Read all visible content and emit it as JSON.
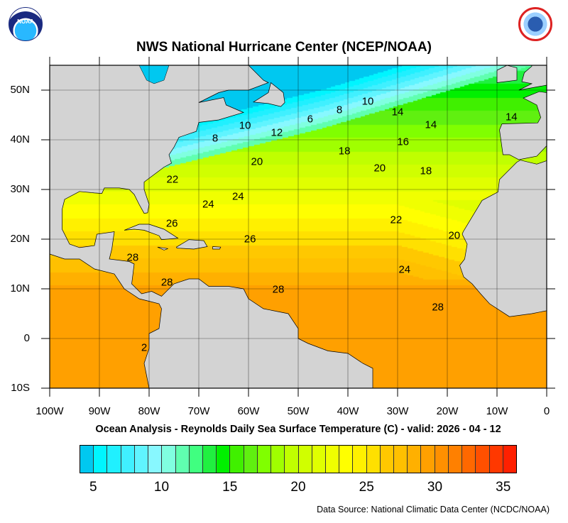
{
  "header": {
    "title": "NWS National Hurricane Center (NCEP/NOAA)",
    "logos": {
      "left": "NOAA",
      "right": "NATIONAL WEATHER SERVICE"
    }
  },
  "map": {
    "type": "filled-contour sea surface temperature map",
    "lat_labels": [
      "50N",
      "40N",
      "30N",
      "20N",
      "10N",
      "0",
      "10S"
    ],
    "lat_values": [
      50,
      40,
      30,
      20,
      10,
      0,
      -10
    ],
    "lon_labels": [
      "100W",
      "90W",
      "80W",
      "70W",
      "60W",
      "50W",
      "40W",
      "30W",
      "20W",
      "10W",
      "0"
    ],
    "lon_values": [
      -100,
      -90,
      -80,
      -70,
      -60,
      -50,
      -40,
      -30,
      -20,
      -10,
      0
    ],
    "extent": {
      "lon": [
        -100,
        0
      ],
      "lat": [
        -10,
        55
      ]
    },
    "grid": true,
    "land_color": "#d3d3d3",
    "contour_labels": [
      {
        "text": "8",
        "lon": -66.7,
        "lat": 40.3
      },
      {
        "text": "10",
        "lon": -60.7,
        "lat": 42.9
      },
      {
        "text": "12",
        "lon": -54.3,
        "lat": 41.4
      },
      {
        "text": "6",
        "lon": -47.6,
        "lat": 44.1
      },
      {
        "text": "8",
        "lon": -41.7,
        "lat": 46.0
      },
      {
        "text": "10",
        "lon": -36.0,
        "lat": 47.7
      },
      {
        "text": "14",
        "lon": -30.0,
        "lat": 45.6
      },
      {
        "text": "14",
        "lon": -23.3,
        "lat": 43.0
      },
      {
        "text": "14",
        "lon": -7.1,
        "lat": 44.6
      },
      {
        "text": "16",
        "lon": -28.9,
        "lat": 39.6
      },
      {
        "text": "18",
        "lon": -40.7,
        "lat": 37.7
      },
      {
        "text": "18",
        "lon": -24.3,
        "lat": 33.7
      },
      {
        "text": "20",
        "lon": -33.6,
        "lat": 34.3
      },
      {
        "text": "20",
        "lon": -58.3,
        "lat": 35.6
      },
      {
        "text": "22",
        "lon": -75.3,
        "lat": 32.0
      },
      {
        "text": "24",
        "lon": -68.1,
        "lat": 27.0
      },
      {
        "text": "24",
        "lon": -62.1,
        "lat": 28.6
      },
      {
        "text": "22",
        "lon": -30.3,
        "lat": 23.9
      },
      {
        "text": "20",
        "lon": -18.6,
        "lat": 20.7
      },
      {
        "text": "26",
        "lon": -75.4,
        "lat": 23.1
      },
      {
        "text": "26",
        "lon": -59.7,
        "lat": 20.0
      },
      {
        "text": "28",
        "lon": -83.3,
        "lat": 16.3
      },
      {
        "text": "28",
        "lon": -76.4,
        "lat": 11.3
      },
      {
        "text": "28",
        "lon": -54.0,
        "lat": 9.9
      },
      {
        "text": "24",
        "lon": -28.6,
        "lat": 13.9
      },
      {
        "text": "28",
        "lon": -21.9,
        "lat": 6.3
      },
      {
        "text": "2",
        "lon": -81.0,
        "lat": -1.9
      }
    ]
  },
  "subtitle": "Ocean Analysis - Reynolds Daily Sea Surface Temperature (C) - valid: 2026 - 04 - 12",
  "colorbar": {
    "unit": "C",
    "tick_labels": [
      "5",
      "10",
      "15",
      "20",
      "25",
      "30",
      "35"
    ],
    "tick_values": [
      5,
      10,
      15,
      20,
      25,
      30,
      35
    ],
    "interval": 1,
    "colors": [
      "#00c8f0",
      "#00f5ff",
      "#20f0ff",
      "#40f0ff",
      "#60f4ff",
      "#88f8ff",
      "#80ffe0",
      "#60ffb0",
      "#40ff80",
      "#20f040",
      "#00f000",
      "#40f000",
      "#60f010",
      "#80ff00",
      "#a0ff00",
      "#c0ff00",
      "#d0ff00",
      "#e0ff00",
      "#f0ff00",
      "#ffff00",
      "#fff000",
      "#ffe000",
      "#ffc800",
      "#ffc000",
      "#ffb000",
      "#ffa000",
      "#ff9000",
      "#ff8000",
      "#ff6800",
      "#ff5000",
      "#ff3800",
      "#ff2000"
    ]
  },
  "footer": {
    "source": "Data Source: National Climatic Data Center (NCDC/NOAA)"
  }
}
